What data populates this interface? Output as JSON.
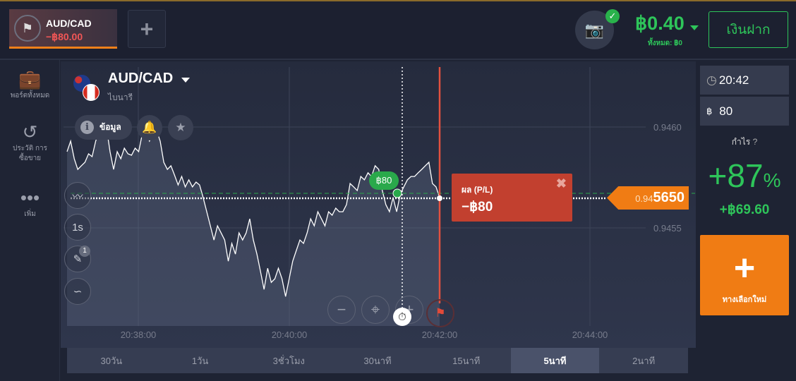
{
  "topbar": {
    "asset_tab": {
      "name": "AUD/CAD",
      "value": "−฿80.00",
      "icon": "checkered-flag-icon"
    },
    "add_tab_label": "+",
    "balance": "฿0.40",
    "balance_total": "ทั้งหมด: ฿0",
    "deposit_label": "เงินฝาก",
    "camera_icon": "camera-icon"
  },
  "sidebar": {
    "items": [
      {
        "label": "พอร์ตทั้งหมด",
        "icon": "briefcase-icon"
      },
      {
        "label": "ประวัติ การซื้อขาย",
        "icon": "history-icon"
      },
      {
        "label": "เพิ่ม",
        "icon": "more-icon"
      }
    ]
  },
  "chart": {
    "pair": "AUD/CAD",
    "type_label": "ไบนารี",
    "info_label": "ข้อมูล",
    "y_ticks": [
      "0.9460",
      "0.9455"
    ],
    "x_ticks": [
      "20:38:00",
      "20:40:00",
      "20:42:00",
      "20:44:00"
    ],
    "current_price_small": "0.94",
    "current_price_big": "5650",
    "bet_badge": "฿80",
    "pl": {
      "title": "ผล (P/L)",
      "value": "−฿80"
    },
    "tools": [
      "chart-type",
      "1s",
      "draw",
      "indicators"
    ],
    "tool_1s": "1s",
    "draw_badge": "1",
    "prices": [
      0.945878,
      0.94593,
      0.945843,
      0.94579,
      0.945808,
      0.945825,
      0.945867,
      0.945853,
      0.94593,
      0.945983,
      0.945948,
      0.946,
      0.945878,
      0.94579,
      0.945878,
      0.945843,
      0.945895,
      0.945867,
      0.94586,
      0.945895,
      0.945878,
      0.945965,
      0.945983,
      0.94593,
      0.945965,
      0.945983,
      0.94593,
      0.945825,
      0.94579,
      0.945808,
      0.945762,
      0.945713,
      0.945755,
      0.945703,
      0.945738,
      0.945703,
      0.945727,
      0.945713,
      0.94565,
      0.94558,
      0.94551,
      0.94544,
      0.94551,
      0.945475,
      0.94544,
      0.945335,
      0.945423,
      0.94537,
      0.945475,
      0.94544,
      0.945475,
      0.945545,
      0.94544,
      0.94537,
      0.945283,
      0.945195,
      0.9453,
      0.94523,
      0.945248,
      0.9453,
      0.945248,
      0.94516,
      0.945248,
      0.945335,
      0.945388,
      0.94544,
      0.945423,
      0.945475,
      0.945545,
      0.94551,
      0.94558,
      0.945545,
      0.94551,
      0.94558,
      0.945563,
      0.945598,
      0.94558,
      0.94558,
      0.945615,
      0.94572,
      0.945703,
      0.945685,
      0.945755,
      0.945738,
      0.945773,
      0.945755,
      0.945808,
      0.94579,
      0.945685,
      0.945615,
      0.94558,
      0.94565,
      0.94558,
      0.945668,
      0.945703,
      0.945738,
      0.945755,
      0.945755,
      0.945773,
      0.94579,
      0.945808,
      0.945825,
      0.94572,
      0.945703,
      0.94565
    ],
    "colors": {
      "line": "#ffffff",
      "expiry": "#e2513f",
      "entry": "#2aa94b",
      "price_tag": "#f07c14"
    }
  },
  "periods": [
    {
      "label": "30วัน"
    },
    {
      "label": "1วัน"
    },
    {
      "label": "3ชั่วโมง"
    },
    {
      "label": "30นาที"
    },
    {
      "label": "15นาที"
    },
    {
      "label": "5นาที",
      "active": true
    },
    {
      "label": "2นาที"
    }
  ],
  "right": {
    "time": "20:42",
    "amount_currency": "฿",
    "amount": "80",
    "profit_label": "กำไร",
    "profit_pct": "+87",
    "pct_sign": "%",
    "profit_amount": "+฿69.60",
    "new_option_label": "ทางเลือกใหม่"
  }
}
